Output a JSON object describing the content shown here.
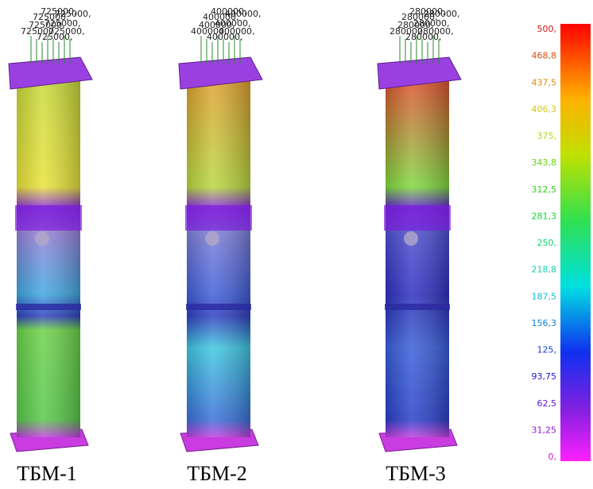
{
  "panels": [
    {
      "label": "ТБМ-1",
      "load_label": "725000,"
    },
    {
      "label": "ТБМ-2",
      "load_label": "400000,"
    },
    {
      "label": "ТБМ-3",
      "load_label": "280000,"
    }
  ],
  "scale": {
    "labels": [
      "500,",
      "468,8",
      "437,5",
      "406,3",
      "375,",
      "343,8",
      "312,5",
      "281,3",
      "250,",
      "218,8",
      "187,5",
      "156,3",
      "125,",
      "93,75",
      "62,5",
      "31,25",
      "0,"
    ]
  }
}
